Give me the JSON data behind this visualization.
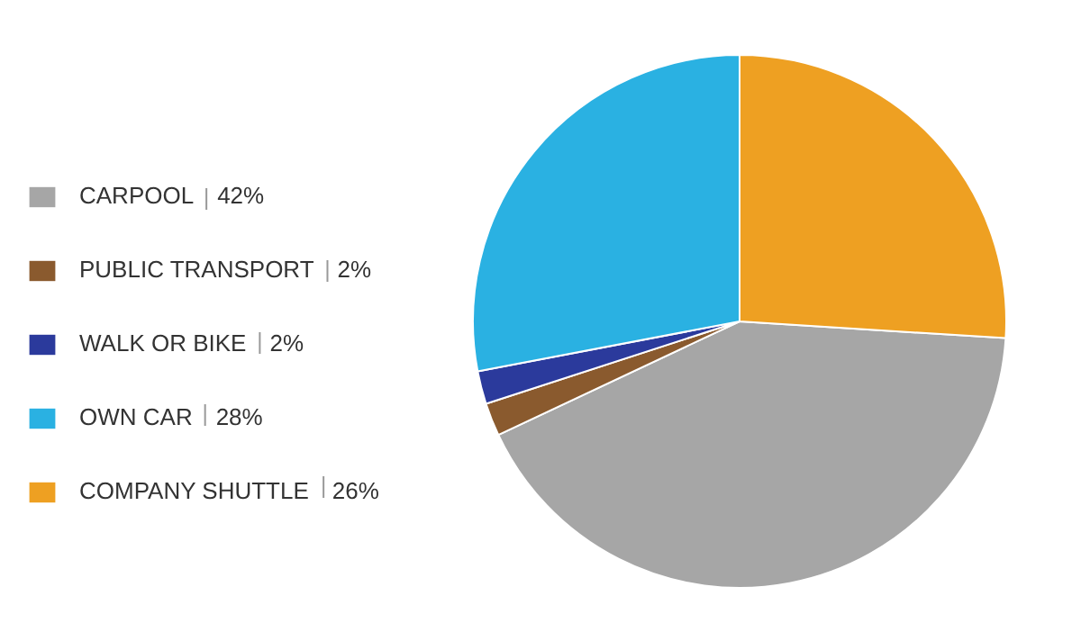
{
  "chart_data": {
    "type": "pie",
    "categories": [
      "CARPOOL",
      "PUBLIC TRANSPORT",
      "WALK OR BIKE",
      "OWN CAR",
      "COMPANY SHUTTLE"
    ],
    "values": [
      42,
      2,
      2,
      28,
      26
    ],
    "value_labels": [
      "42%",
      "2%",
      "2%",
      "28%",
      "26%"
    ],
    "colors": [
      "#a6a6a6",
      "#8a5a2e",
      "#2b3a9c",
      "#2ab1e2",
      "#eea022"
    ],
    "legend": "left"
  }
}
